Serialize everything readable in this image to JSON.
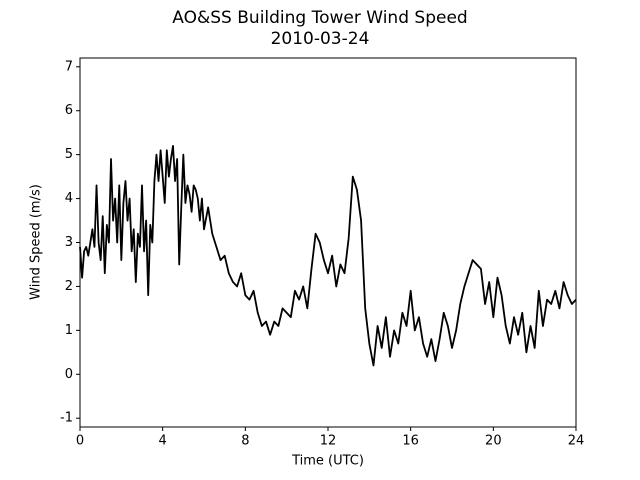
{
  "chart_data": {
    "type": "line",
    "title": "AO&SS Building Tower Wind Speed",
    "subtitle": "2010-03-24",
    "x_label": "Time (UTC)",
    "y_label": "Wind Speed (m/s)",
    "xlim": [
      0,
      24
    ],
    "xticks": [
      0,
      4,
      8,
      12,
      16,
      20,
      24
    ],
    "ylim": [
      -1.2,
      7.2
    ],
    "yticks": [
      -1,
      0,
      1,
      2,
      3,
      4,
      5,
      6,
      7
    ],
    "grid": false,
    "series": [
      {
        "color": "#000000",
        "x": [
          0,
          0.1,
          0.2,
          0.3,
          0.4,
          0.5,
          0.6,
          0.7,
          0.8,
          0.9,
          1.0,
          1.1,
          1.2,
          1.3,
          1.4,
          1.5,
          1.6,
          1.7,
          1.8,
          1.9,
          2.0,
          2.1,
          2.2,
          2.3,
          2.4,
          2.5,
          2.6,
          2.7,
          2.8,
          2.9,
          3.0,
          3.1,
          3.2,
          3.3,
          3.4,
          3.5,
          3.6,
          3.7,
          3.8,
          3.9,
          4.0,
          4.1,
          4.2,
          4.3,
          4.4,
          4.5,
          4.6,
          4.7,
          4.8,
          4.9,
          5.0,
          5.1,
          5.2,
          5.3,
          5.4,
          5.5,
          5.6,
          5.7,
          5.8,
          5.9,
          6.0,
          6.2,
          6.4,
          6.6,
          6.8,
          7.0,
          7.2,
          7.4,
          7.6,
          7.8,
          8.0,
          8.2,
          8.4,
          8.6,
          8.8,
          9.0,
          9.2,
          9.4,
          9.6,
          9.8,
          10.0,
          10.2,
          10.4,
          10.6,
          10.8,
          11.0,
          11.2,
          11.4,
          11.6,
          11.8,
          12.0,
          12.2,
          12.4,
          12.6,
          12.8,
          13.0,
          13.2,
          13.4,
          13.6,
          13.8,
          14.0,
          14.2,
          14.4,
          14.6,
          14.8,
          15.0,
          15.2,
          15.4,
          15.6,
          15.8,
          16.0,
          16.2,
          16.4,
          16.6,
          16.8,
          17.0,
          17.2,
          17.4,
          17.6,
          17.8,
          18.0,
          18.2,
          18.4,
          18.6,
          18.8,
          19.0,
          19.2,
          19.4,
          19.6,
          19.8,
          20.0,
          20.2,
          20.4,
          20.6,
          20.8,
          21.0,
          21.2,
          21.4,
          21.6,
          21.8,
          22.0,
          22.2,
          22.4,
          22.6,
          22.8,
          23.0,
          23.2,
          23.4,
          23.6,
          23.8,
          24.0
        ],
        "values": [
          2.9,
          2.2,
          2.8,
          2.9,
          2.7,
          3.0,
          3.3,
          2.9,
          4.3,
          3.0,
          2.6,
          3.6,
          2.3,
          3.4,
          3.0,
          4.9,
          3.5,
          4.0,
          3.0,
          4.3,
          2.6,
          3.9,
          4.4,
          3.5,
          4.0,
          2.8,
          3.3,
          2.1,
          3.2,
          2.9,
          4.3,
          2.8,
          3.5,
          1.8,
          3.4,
          3.0,
          4.4,
          5.0,
          4.4,
          5.1,
          4.5,
          3.9,
          5.1,
          4.5,
          4.9,
          5.2,
          4.4,
          4.9,
          2.5,
          3.8,
          5.0,
          3.9,
          4.3,
          4.1,
          3.7,
          4.3,
          4.2,
          4.0,
          3.5,
          4.0,
          3.3,
          3.8,
          3.2,
          2.9,
          2.6,
          2.7,
          2.3,
          2.1,
          2.0,
          2.3,
          1.8,
          1.7,
          1.9,
          1.4,
          1.1,
          1.2,
          0.9,
          1.2,
          1.1,
          1.5,
          1.4,
          1.3,
          1.9,
          1.7,
          2.0,
          1.5,
          2.4,
          3.2,
          3.0,
          2.6,
          2.3,
          2.7,
          2.0,
          2.5,
          2.3,
          3.1,
          4.5,
          4.2,
          3.5,
          1.5,
          0.7,
          0.2,
          1.1,
          0.6,
          1.3,
          0.4,
          1.0,
          0.7,
          1.4,
          1.1,
          1.9,
          1.0,
          1.3,
          0.7,
          0.4,
          0.8,
          0.3,
          0.8,
          1.4,
          1.1,
          0.6,
          1.0,
          1.6,
          2.0,
          2.3,
          2.6,
          2.5,
          2.4,
          1.6,
          2.1,
          1.3,
          2.2,
          1.8,
          1.1,
          0.7,
          1.3,
          0.9,
          1.4,
          0.5,
          1.1,
          0.6,
          1.9,
          1.1,
          1.7,
          1.6,
          1.9,
          1.5,
          2.1,
          1.8,
          1.6,
          1.7
        ]
      }
    ]
  }
}
